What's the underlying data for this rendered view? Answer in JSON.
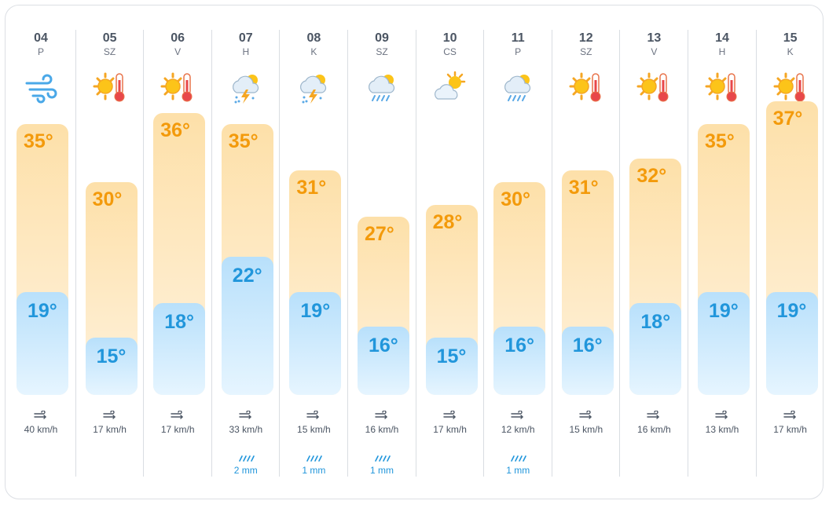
{
  "days": [
    {
      "date": "04",
      "weekday": "P",
      "icon": "wind-icon",
      "high": "35°",
      "low": "19°",
      "high_val": 35,
      "low_val": 19,
      "wind": "40 km/h",
      "rain": ""
    },
    {
      "date": "05",
      "weekday": "SZ",
      "icon": "sun-hot-icon",
      "high": "30°",
      "low": "15°",
      "high_val": 30,
      "low_val": 15,
      "wind": "17 km/h",
      "rain": ""
    },
    {
      "date": "06",
      "weekday": "V",
      "icon": "sun-hot-icon",
      "high": "36°",
      "low": "18°",
      "high_val": 36,
      "low_val": 18,
      "wind": "17 km/h",
      "rain": ""
    },
    {
      "date": "07",
      "weekday": "H",
      "icon": "thunderstorm-icon",
      "high": "35°",
      "low": "22°",
      "high_val": 35,
      "low_val": 22,
      "wind": "33 km/h",
      "rain": "2 mm"
    },
    {
      "date": "08",
      "weekday": "K",
      "icon": "thunderstorm-icon",
      "high": "31°",
      "low": "19°",
      "high_val": 31,
      "low_val": 19,
      "wind": "15 km/h",
      "rain": "1 mm"
    },
    {
      "date": "09",
      "weekday": "SZ",
      "icon": "sun-rain-icon",
      "high": "27°",
      "low": "16°",
      "high_val": 27,
      "low_val": 16,
      "wind": "16 km/h",
      "rain": "1 mm"
    },
    {
      "date": "10",
      "weekday": "CS",
      "icon": "partly-cloudy-icon",
      "high": "28°",
      "low": "15°",
      "high_val": 28,
      "low_val": 15,
      "wind": "17 km/h",
      "rain": ""
    },
    {
      "date": "11",
      "weekday": "P",
      "icon": "sun-rain-icon",
      "high": "30°",
      "low": "16°",
      "high_val": 30,
      "low_val": 16,
      "wind": "12 km/h",
      "rain": "1 mm"
    },
    {
      "date": "12",
      "weekday": "SZ",
      "icon": "sun-hot-icon",
      "high": "31°",
      "low": "16°",
      "high_val": 31,
      "low_val": 16,
      "wind": "15 km/h",
      "rain": ""
    },
    {
      "date": "13",
      "weekday": "V",
      "icon": "sun-hot-icon",
      "high": "32°",
      "low": "18°",
      "high_val": 32,
      "low_val": 18,
      "wind": "16 km/h",
      "rain": ""
    },
    {
      "date": "14",
      "weekday": "H",
      "icon": "sun-hot-icon",
      "high": "35°",
      "low": "19°",
      "high_val": 35,
      "low_val": 19,
      "wind": "13 km/h",
      "rain": ""
    },
    {
      "date": "15",
      "weekday": "K",
      "icon": "sun-hot-icon",
      "high": "37°",
      "low": "19°",
      "high_val": 37,
      "low_val": 19,
      "wind": "17 km/h",
      "rain": ""
    }
  ],
  "colors": {
    "high_text": "#f39a0b",
    "low_text": "#2196db",
    "high_bar": "#fde0a9",
    "low_bar": "#b8e0fb"
  }
}
